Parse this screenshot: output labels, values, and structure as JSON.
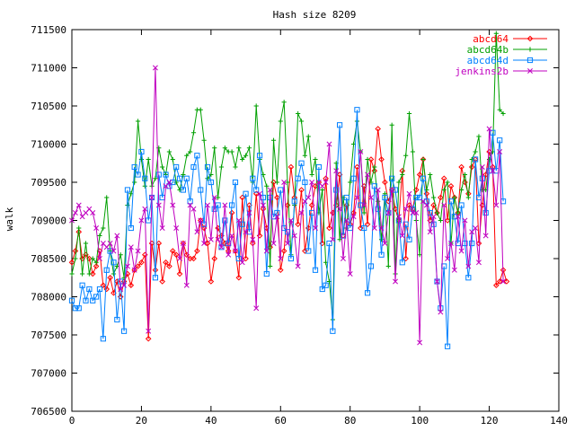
{
  "chart_data": {
    "type": "line",
    "title": "Hash size 8209",
    "xlabel": "",
    "ylabel": "walk",
    "xlim": [
      0,
      140
    ],
    "ylim": [
      706500,
      711500
    ],
    "xticks": [
      0,
      20,
      40,
      60,
      80,
      100,
      120,
      140
    ],
    "yticks": [
      706500,
      707000,
      707500,
      708000,
      708500,
      709000,
      709500,
      710000,
      710500,
      711000,
      711500
    ],
    "grid": false,
    "legend_position": "top-right",
    "series": [
      {
        "name": "abcd64",
        "color": "#ff0000",
        "marker": "diamond",
        "values": [
          708450,
          708600,
          708850,
          708500,
          708550,
          708500,
          708300,
          708400,
          708600,
          708150,
          708100,
          708250,
          708050,
          708200,
          708000,
          708200,
          708300,
          708150,
          708350,
          708400,
          708450,
          708550,
          707450,
          708700,
          708350,
          708700,
          708200,
          708450,
          708400,
          708600,
          708550,
          708300,
          708700,
          708550,
          708500,
          708500,
          708600,
          709000,
          708900,
          708700,
          708200,
          708500,
          708900,
          708800,
          708700,
          708600,
          709100,
          708600,
          708250,
          709300,
          708500,
          709200,
          708700,
          709350,
          708800,
          709150,
          708900,
          708650,
          709500,
          709300,
          708350,
          708600,
          709200,
          709700,
          709300,
          708950,
          709400,
          708600,
          708900,
          709200,
          709450,
          709500,
          708700,
          709550,
          708900,
          709100,
          709200,
          709600,
          708800,
          709200,
          708950,
          709100,
          709700,
          708900,
          709450,
          708950,
          709800,
          709650,
          710200,
          709800,
          709500,
          709250,
          709400,
          709150,
          709000,
          709650,
          708500,
          709200,
          709150,
          709400,
          709600,
          709800,
          709350,
          709000,
          709200,
          709100,
          709300,
          709550,
          709000,
          709450,
          709300,
          709100,
          709700,
          709500,
          709350,
          709700,
          709800,
          708700,
          709200,
          709600,
          709900,
          709700,
          708150,
          708200,
          708350,
          708200
        ]
      },
      {
        "name": "abcd64b",
        "color": "#00a000",
        "marker": "plus",
        "values": [
          708300,
          708500,
          708900,
          708300,
          708700,
          708300,
          708500,
          708450,
          708800,
          708900,
          709300,
          708600,
          708300,
          708400,
          708550,
          708250,
          709200,
          709350,
          709500,
          710300,
          709800,
          709450,
          709800,
          709450,
          709550,
          709950,
          709700,
          709600,
          709900,
          709800,
          709500,
          709400,
          709600,
          709850,
          709900,
          710150,
          710450,
          710450,
          710050,
          709550,
          709600,
          709950,
          709300,
          709700,
          709950,
          709900,
          709900,
          709700,
          709950,
          709800,
          709850,
          709950,
          709500,
          710500,
          709800,
          709600,
          709450,
          708400,
          710050,
          709500,
          710300,
          710550,
          709500,
          708550,
          709200,
          710400,
          710300,
          709850,
          710100,
          709600,
          709800,
          709100,
          709400,
          708450,
          708200,
          707700,
          709750,
          708750,
          709300,
          708900,
          709500,
          710000,
          710300,
          709900,
          709100,
          709800,
          709500,
          709700,
          709250,
          708750,
          709350,
          708400,
          710250,
          708300,
          709500,
          709600,
          709850,
          710400,
          709900,
          709000,
          708550,
          709800,
          709400,
          709600,
          709300,
          709100,
          709000,
          709400,
          709500,
          708700,
          709300,
          709100,
          709400,
          709600,
          709300,
          709800,
          709900,
          710100,
          709400,
          709400,
          709800,
          709900,
          711450,
          710450,
          710400
        ]
      },
      {
        "name": "abcd64d",
        "color": "#0080ff",
        "marker": "square",
        "values": [
          707950,
          707850,
          707850,
          708150,
          707950,
          708100,
          707950,
          708000,
          708100,
          707450,
          708350,
          708600,
          708450,
          707700,
          708200,
          707550,
          709400,
          708900,
          709700,
          709600,
          709900,
          709550,
          709000,
          709300,
          708250,
          709600,
          709300,
          709600,
          709450,
          709500,
          709700,
          709550,
          709400,
          709550,
          709250,
          709700,
          709850,
          709400,
          708950,
          709700,
          709500,
          709150,
          709200,
          708650,
          709000,
          708700,
          709200,
          709500,
          708500,
          708950,
          709350,
          708850,
          709550,
          709400,
          709850,
          709300,
          708300,
          709300,
          709050,
          709100,
          709400,
          708900,
          708850,
          708500,
          709250,
          709550,
          709750,
          709500,
          708600,
          709100,
          708350,
          709700,
          708100,
          708150,
          708700,
          707550,
          709400,
          710250,
          708800,
          709300,
          708900,
          709550,
          710450,
          709200,
          708900,
          708050,
          708400,
          709450,
          709150,
          708550,
          709300,
          709100,
          709550,
          709400,
          709000,
          708450,
          708950,
          708750,
          709150,
          709300,
          709300,
          709550,
          709250,
          709100,
          708950,
          708200,
          707850,
          708400,
          707350,
          709250,
          709050,
          708700,
          709200,
          708700,
          708250,
          708700,
          709800,
          709300,
          709550,
          709100,
          709650,
          710150,
          709650,
          710050,
          709250
        ]
      },
      {
        "name": "jenkins2b",
        "color": "#c000c0",
        "marker": "cross",
        "values": [
          709000,
          709100,
          709200,
          709050,
          709100,
          709150,
          709100,
          708900,
          708500,
          708700,
          708650,
          708700,
          708600,
          708800,
          708100,
          708150,
          708400,
          708650,
          708350,
          708600,
          709000,
          709150,
          707550,
          709300,
          711000,
          709200,
          708900,
          709450,
          709500,
          709200,
          708900,
          708500,
          708700,
          708150,
          709200,
          709150,
          708850,
          709000,
          708700,
          709200,
          708750,
          709300,
          708750,
          708650,
          709200,
          708550,
          708800,
          708600,
          709000,
          708450,
          708850,
          709100,
          708750,
          707850,
          709350,
          709200,
          708600,
          709400,
          708700,
          709050,
          708500,
          709500,
          708700,
          709000,
          708800,
          708400,
          709100,
          709250,
          709300,
          709500,
          708900,
          709500,
          709450,
          709500,
          710000,
          708750,
          709650,
          709150,
          708500,
          709000,
          708300,
          709050,
          709300,
          709900,
          709200,
          709600,
          709300,
          708900,
          709400,
          708900,
          708700,
          709100,
          709400,
          708200,
          709050,
          708800,
          709150,
          709350,
          709100,
          709100,
          707400,
          709250,
          709200,
          708850,
          709050,
          708200,
          707800,
          709200,
          708500,
          708700,
          708350,
          709050,
          708600,
          709000,
          708400,
          708850,
          708900,
          708450,
          709700,
          708800,
          710200,
          709650,
          709200,
          709900,
          708200
        ]
      }
    ]
  }
}
